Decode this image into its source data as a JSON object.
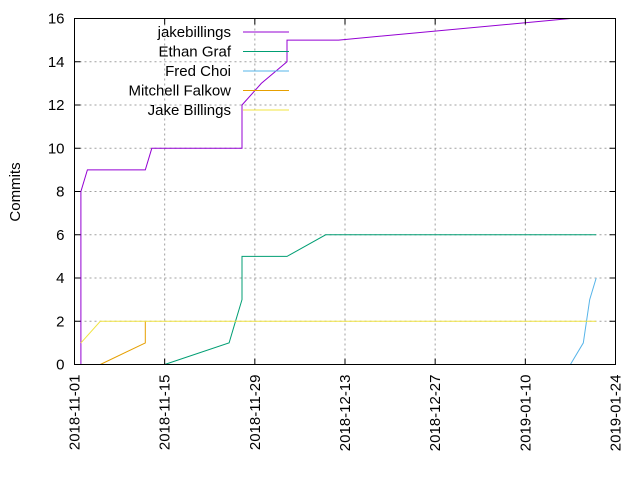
{
  "chart_data": {
    "type": "line",
    "title": "",
    "xlabel": "",
    "ylabel": "Commits",
    "x_type": "date",
    "xlim": [
      "2018-11-01",
      "2019-01-24"
    ],
    "ylim": [
      0,
      16
    ],
    "x_ticks": [
      "2018-11-01",
      "2018-11-15",
      "2018-11-29",
      "2018-12-13",
      "2018-12-27",
      "2019-01-10",
      "2019-01-24"
    ],
    "y_ticks": [
      "0",
      "2",
      "4",
      "6",
      "8",
      "10",
      "12",
      "14",
      "16"
    ],
    "grid": true,
    "legend_position": "top-left",
    "series": [
      {
        "name": "jakebillings",
        "color": "#9400d3",
        "points": [
          [
            "2018-11-02",
            0
          ],
          [
            "2018-11-02",
            8
          ],
          [
            "2018-11-03",
            9
          ],
          [
            "2018-11-12",
            9
          ],
          [
            "2018-11-13",
            10
          ],
          [
            "2018-11-27",
            10
          ],
          [
            "2018-11-27",
            12
          ],
          [
            "2018-11-30",
            13
          ],
          [
            "2018-12-04",
            14
          ],
          [
            "2018-12-04",
            15
          ],
          [
            "2018-12-12",
            15
          ],
          [
            "2019-01-17",
            16
          ]
        ]
      },
      {
        "name": "Ethan Graf",
        "color": "#009e73",
        "points": [
          [
            "2018-11-15",
            0
          ],
          [
            "2018-11-25",
            1
          ],
          [
            "2018-11-26",
            2
          ],
          [
            "2018-11-27",
            3
          ],
          [
            "2018-11-27",
            5
          ],
          [
            "2018-12-04",
            5
          ],
          [
            "2018-12-10",
            6
          ],
          [
            "2019-01-21",
            6
          ]
        ]
      },
      {
        "name": "Fred Choi",
        "color": "#56b4e9",
        "points": [
          [
            "2019-01-17",
            0
          ],
          [
            "2019-01-19",
            1
          ],
          [
            "2019-01-20",
            3
          ],
          [
            "2019-01-21",
            4
          ]
        ]
      },
      {
        "name": "Mitchell Falkow",
        "color": "#e69f00",
        "points": [
          [
            "2018-11-05",
            0
          ],
          [
            "2018-11-12",
            1
          ],
          [
            "2018-11-12",
            2
          ]
        ]
      },
      {
        "name": "Jake Billings",
        "color": "#f0e442",
        "points": [
          [
            "2018-11-02",
            1
          ],
          [
            "2018-11-05",
            2
          ],
          [
            "2019-01-21",
            2
          ]
        ]
      }
    ]
  }
}
